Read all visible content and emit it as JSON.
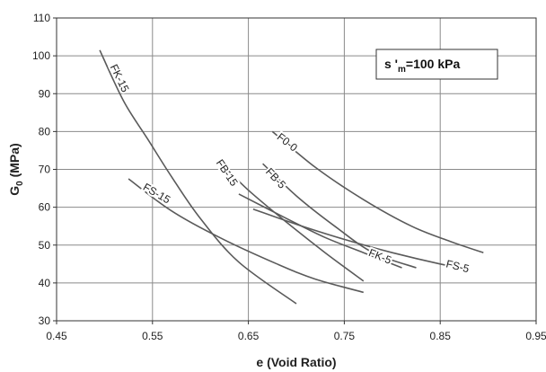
{
  "chart_data": {
    "type": "line",
    "xlabel": "e (Void Ratio)",
    "ylabel_parts": {
      "main": "G",
      "sub": "0",
      "rest": " (MPa)"
    },
    "xlim": [
      0.45,
      0.95
    ],
    "ylim": [
      30,
      110
    ],
    "xticks": [
      "0.45",
      "0.55",
      "0.65",
      "0.75",
      "0.85",
      "0.95"
    ],
    "yticks": [
      "30",
      "40",
      "50",
      "60",
      "70",
      "80",
      "90",
      "100",
      "110"
    ],
    "grid": true,
    "annotation": {
      "symbol": "s",
      "prime": " '",
      "sub": "m",
      "rest": "=100 kPa"
    },
    "line_color": "#5a5a5a",
    "series": [
      {
        "name": "FK-15",
        "x": [
          0.495,
          0.52,
          0.545,
          0.57,
          0.6,
          0.64,
          0.7
        ],
        "y": [
          101.5,
          88,
          78,
          68,
          57,
          45.5,
          34.5
        ]
      },
      {
        "name": "FS-15",
        "x": [
          0.525,
          0.57,
          0.62,
          0.68,
          0.72,
          0.77
        ],
        "y": [
          67.5,
          59,
          52,
          45,
          41,
          37.5
        ]
      },
      {
        "name": "FB-15",
        "x": [
          0.62,
          0.65,
          0.69,
          0.73,
          0.77
        ],
        "y": [
          72,
          64.5,
          56,
          48,
          40.5
        ]
      },
      {
        "name": "FB-5",
        "x": [
          0.665,
          0.7,
          0.74,
          0.78,
          0.825
        ],
        "y": [
          71.5,
          63,
          55,
          48,
          44
        ]
      },
      {
        "name": "F0-0",
        "x": [
          0.675,
          0.72,
          0.77,
          0.82,
          0.86,
          0.895
        ],
        "y": [
          80,
          70.5,
          62,
          55,
          51,
          48
        ]
      },
      {
        "name": "FK-5",
        "x": [
          0.64,
          0.69,
          0.73,
          0.77,
          0.81
        ],
        "y": [
          63.5,
          57,
          52,
          48,
          44
        ]
      },
      {
        "name": "FS-5",
        "x": [
          0.655,
          0.7,
          0.75,
          0.8,
          0.85,
          0.88
        ],
        "y": [
          59.5,
          55.5,
          51.5,
          48,
          45,
          43.5
        ]
      }
    ],
    "curve_labels": [
      {
        "text": "FK-15",
        "x": 0.515,
        "y": 94,
        "angle": 64
      },
      {
        "text": "FS-15",
        "x": 0.554,
        "y": 63.5,
        "angle": 30
      },
      {
        "text": "FB-15",
        "x": 0.627,
        "y": 69,
        "angle": 56
      },
      {
        "text": "FB-5",
        "x": 0.678,
        "y": 67.5,
        "angle": 47
      },
      {
        "text": "F0-0",
        "x": 0.69,
        "y": 77,
        "angle": 38
      },
      {
        "text": "FK-5",
        "x": 0.787,
        "y": 46.8,
        "angle": 22
      },
      {
        "text": "FS-5",
        "x": 0.868,
        "y": 44.2,
        "angle": 14
      }
    ]
  }
}
